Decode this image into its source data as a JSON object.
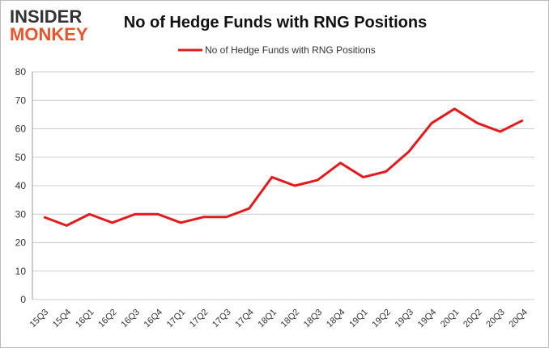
{
  "logo": [
    "INSIDER",
    "MONKEY"
  ],
  "chart_data": {
    "type": "line",
    "title": "No of Hedge Funds with RNG Positions",
    "categories": [
      "15Q3",
      "15Q4",
      "16Q1",
      "16Q2",
      "16Q3",
      "16Q4",
      "17Q1",
      "17Q2",
      "17Q3",
      "17Q4",
      "18Q1",
      "18Q2",
      "18Q3",
      "18Q4",
      "19Q1",
      "19Q2",
      "19Q3",
      "19Q4",
      "20Q1",
      "20Q2",
      "20Q3",
      "20Q4"
    ],
    "series": [
      {
        "name": "No of Hedge Funds with RNG Positions",
        "color": "#e31a1c",
        "values": [
          29,
          26,
          30,
          27,
          30,
          30,
          27,
          29,
          29,
          32,
          43,
          40,
          42,
          48,
          43,
          45,
          52,
          62,
          67,
          62,
          59,
          63
        ]
      }
    ],
    "ylim": [
      0,
      80
    ],
    "yticks": [
      0,
      10,
      20,
      30,
      40,
      50,
      60,
      70,
      80
    ],
    "grid": true,
    "legend": "top"
  }
}
